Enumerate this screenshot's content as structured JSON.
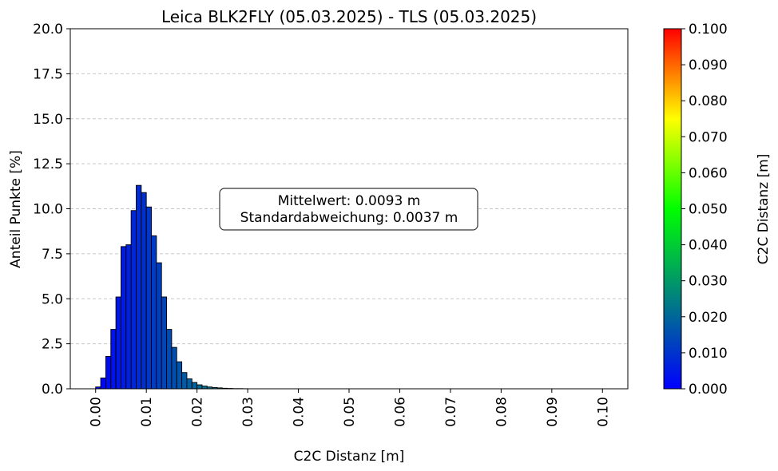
{
  "chart_data": {
    "type": "bar",
    "title": "Leica BLK2FLY (05.03.2025) - TLS (05.03.2025)",
    "xlabel": "C2C Distanz [m]",
    "ylabel": "Anteil Punkte [%]",
    "xlim": [
      -0.005,
      0.105
    ],
    "ylim": [
      0,
      20
    ],
    "grid": "y-dashed",
    "x_ticks": [
      "0.00",
      "0.01",
      "0.02",
      "0.03",
      "0.04",
      "0.05",
      "0.06",
      "0.07",
      "0.08",
      "0.09",
      "0.10"
    ],
    "y_ticks": [
      "0.0",
      "2.5",
      "5.0",
      "7.5",
      "10.0",
      "12.5",
      "15.0",
      "17.5",
      "20.0"
    ],
    "bin_width": 0.001,
    "bin_start": 0.0,
    "values": [
      0.1,
      0.6,
      1.8,
      3.3,
      5.1,
      7.9,
      8.0,
      9.9,
      11.3,
      10.9,
      10.1,
      8.5,
      7.0,
      5.1,
      3.3,
      2.3,
      1.5,
      0.9,
      0.55,
      0.35,
      0.22,
      0.15,
      0.1,
      0.07,
      0.05,
      0.03,
      0.02,
      0.01,
      0.01,
      0.005
    ],
    "annotation": {
      "line1": "Mittelwert: 0.0093 m",
      "line2": "Standardabweichung: 0.0037 m"
    },
    "colorbar": {
      "label": "C2C Distanz [m]",
      "range": [
        0.0,
        0.1
      ],
      "ticks": [
        "0.000",
        "0.010",
        "0.020",
        "0.030",
        "0.040",
        "0.050",
        "0.060",
        "0.070",
        "0.080",
        "0.090",
        "0.100"
      ],
      "colors": [
        "#0000ff",
        "#008080",
        "#00ff00",
        "#ffff00",
        "#ff0000"
      ]
    }
  }
}
